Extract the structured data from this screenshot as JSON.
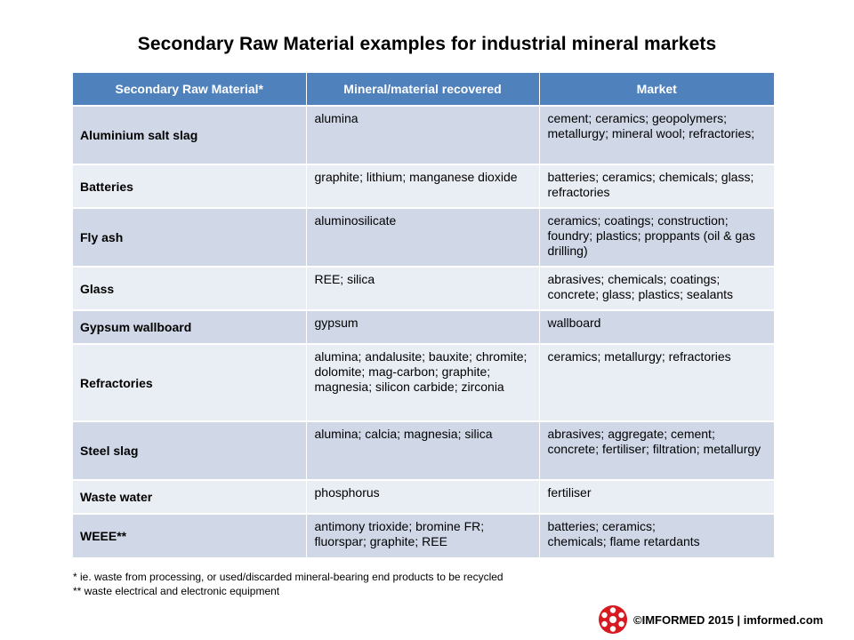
{
  "title": "Secondary Raw Material examples for industrial mineral markets",
  "table": {
    "headers": [
      "Secondary Raw Material*",
      "Mineral/material  recovered",
      "Market"
    ],
    "rows": [
      {
        "name": "Aluminium salt slag",
        "recovered": "alumina",
        "market": "cement; ceramics; geopolymers; metallurgy;  mineral wool; refractories;"
      },
      {
        "name": "Batteries",
        "recovered": "graphite; lithium;  manganese dioxide",
        "market": "batteries; ceramics; chemicals; glass; refractories"
      },
      {
        "name": "Fly ash",
        "recovered": "aluminosilicate",
        "market": "ceramics; coatings; construction; foundry;  plastics; proppants (oil & gas drilling)"
      },
      {
        "name": "Glass",
        "recovered": "REE; silica",
        "market": "abrasives; chemicals; coatings; concrete; glass; plastics; sealants"
      },
      {
        "name": "Gypsum wallboard",
        "recovered": "gypsum",
        "market": "wallboard"
      },
      {
        "name": "Refractories",
        "recovered": "alumina;  andalusite; bauxite; chromite; dolomite; mag-carbon; graphite; magnesia; silicon carbide; zirconia",
        "market": "ceramics; metallurgy;  refractories"
      },
      {
        "name": "Steel slag",
        "recovered": "alumina;  calcia; magnesia;  silica",
        "market": "abrasives; aggregate; cement; concrete; fertiliser; filtration; metallurgy"
      },
      {
        "name": "Waste water",
        "recovered": "phosphorus",
        "market": "fertiliser"
      },
      {
        "name": "WEEE**",
        "recovered": "antimony trioxide; bromine FR; fluorspar;  graphite; REE",
        "market": "batteries; ceramics;\nchemicals; flame retardants"
      }
    ]
  },
  "footnotes": [
    "* ie. waste from processing, or used/discarded  mineral-bearing  end products to be recycled",
    "** waste electrical and electronic equipment"
  ],
  "footer": {
    "text": "©IMFORMED 2015  | imformed.com",
    "logo_icon": "imformed-logo-icon",
    "logo_color": "#d71920"
  },
  "colors": {
    "header_bg": "#4f81bd",
    "row_odd": "#d0d8e8",
    "row_even": "#e9edf4"
  }
}
